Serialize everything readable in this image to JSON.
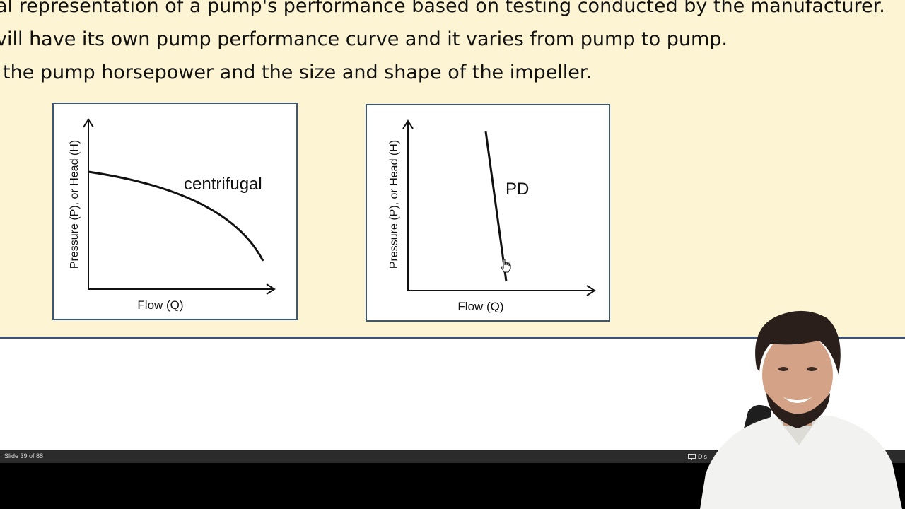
{
  "slide": {
    "lines": [
      "al representation of a pump's performance based on testing conducted by the manufacturer.",
      "vill have its own pump performance curve and it varies from pump to pump.",
      "the pump horsepower and the size and shape of the impeller."
    ],
    "diagrams": [
      {
        "curve_label": "centrifugal",
        "x_axis_label": "Flow (Q)",
        "y_axis_label": "Pressure (P), or Head (H)"
      },
      {
        "curve_label": "PD",
        "x_axis_label": "Flow (Q)",
        "y_axis_label": "Pressure (P), or Head (H)"
      }
    ]
  },
  "status_bar": {
    "slide_counter": "Slide 39 of 88",
    "display_settings_label": "Dis"
  },
  "colors": {
    "slide_background": "#fcf4d2",
    "box_border": "#3a5678",
    "status_bar": "#2b2b2b"
  },
  "icons": {
    "cursor": "hand-pointer-icon",
    "display": "display-settings-icon"
  }
}
